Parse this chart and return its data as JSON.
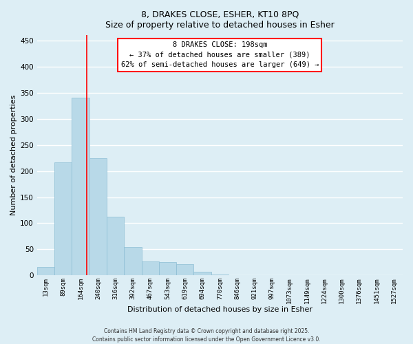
{
  "title_line1": "8, DRAKES CLOSE, ESHER, KT10 8PQ",
  "title_line2": "Size of property relative to detached houses in Esher",
  "xlabel": "Distribution of detached houses by size in Esher",
  "ylabel": "Number of detached properties",
  "bar_labels": [
    "13sqm",
    "89sqm",
    "164sqm",
    "240sqm",
    "316sqm",
    "392sqm",
    "467sqm",
    "543sqm",
    "619sqm",
    "694sqm",
    "770sqm",
    "846sqm",
    "921sqm",
    "997sqm",
    "1073sqm",
    "1149sqm",
    "1224sqm",
    "1300sqm",
    "1376sqm",
    "1451sqm",
    "1527sqm"
  ],
  "bar_heights": [
    17,
    217,
    340,
    225,
    113,
    55,
    27,
    25,
    22,
    7,
    2,
    1,
    0,
    0,
    0,
    0,
    0,
    0,
    0,
    0,
    0
  ],
  "bar_color": "#b8d9e8",
  "bar_edge_color": "#8bbdd4",
  "ylim": [
    0,
    460
  ],
  "yticks": [
    0,
    50,
    100,
    150,
    200,
    250,
    300,
    350,
    400,
    450
  ],
  "red_line_x": 2.37,
  "annotation_title": "8 DRAKES CLOSE: 198sqm",
  "annotation_line1": "← 37% of detached houses are smaller (389)",
  "annotation_line2": "62% of semi-detached houses are larger (649) →",
  "bg_color": "#ddeef5",
  "grid_color": "#ffffff",
  "footnote1": "Contains HM Land Registry data © Crown copyright and database right 2025.",
  "footnote2": "Contains public sector information licensed under the Open Government Licence v3.0."
}
